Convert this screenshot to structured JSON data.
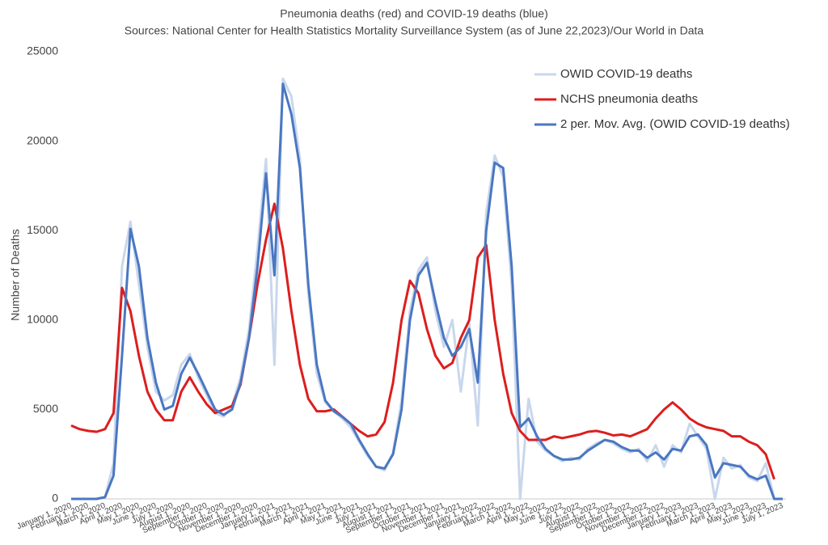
{
  "chart_data": {
    "type": "line",
    "title": "Pneumonia deaths (red) and COVID-19 deaths (blue)",
    "subtitle": "Sources: National Center for Health Statistics Mortality Surveillance System (as of June 22,2023)/Our World in Data",
    "y_label": "Number of Deaths",
    "ylim": [
      0,
      25000
    ],
    "yticks": [
      0,
      5000,
      10000,
      15000,
      20000,
      25000
    ],
    "grid": false,
    "legend": "top-right",
    "categories": [
      "January 1, 2020",
      null,
      "February 1, 2020",
      null,
      "March 1, 2020",
      null,
      "April 1, 2020",
      null,
      "May 1, 2020",
      null,
      "June 1, 2020",
      null,
      "July 1, 2020",
      null,
      "August 1, 2020",
      null,
      "September 1, 2020",
      null,
      "October 1, 2020",
      null,
      "November 1, 2020",
      null,
      "December 1, 2020",
      null,
      "January 1, 2021",
      null,
      "February 1, 2021",
      null,
      "March 1, 2021",
      null,
      "April 1, 2021",
      null,
      "May 1, 2021",
      null,
      "June 1, 2021",
      null,
      "July 1, 2021",
      null,
      "August 1, 2021",
      null,
      "September 1, 2021",
      null,
      "October 1, 2021",
      null,
      "November 1, 2021",
      null,
      "December 1, 2021",
      null,
      "January 1, 2022",
      null,
      "February 1, 2022",
      null,
      "March 1, 2022",
      null,
      "April 1, 2022",
      null,
      "May 1, 2022",
      null,
      "June 1, 2022",
      null,
      "July 1, 2022",
      null,
      "August 1, 2022",
      null,
      "September 1, 2022",
      null,
      "October 1, 2022",
      null,
      "November 1, 2022",
      null,
      "December 1, 2022",
      null,
      "January 1, 2023",
      null,
      "February 1, 2023",
      null,
      "March 1, 2023",
      null,
      "April 1, 2023",
      null,
      "May 1, 2023",
      null,
      "June 1, 2023",
      null,
      "July 1, 2023"
    ],
    "series": [
      {
        "name": "OWID COVID-19 deaths",
        "color": "#c9d7ec",
        "width": 3,
        "values": [
          0,
          0,
          0,
          0,
          100,
          2000,
          13000,
          15500,
          12000,
          8500,
          6000,
          5500,
          5800,
          7500,
          8100,
          6800,
          5800,
          4800,
          4600,
          5200,
          6800,
          9500,
          14000,
          19000,
          7500,
          23500,
          22500,
          19000,
          11500,
          7000,
          5400,
          4900,
          4500,
          4000,
          3200,
          2400,
          1800,
          1600,
          2600,
          5500,
          10500,
          12800,
          13500,
          10500,
          8500,
          10000,
          6000,
          9800,
          4100,
          16000,
          19200,
          18000,
          12000,
          0,
          5600,
          3200,
          2700,
          2400,
          2100,
          2300,
          2200,
          2800,
          3100,
          3300,
          3100,
          2800,
          2600,
          2800,
          2100,
          3000,
          1800,
          3000,
          2600,
          4200,
          3500,
          2800,
          0,
          2300,
          1700,
          1900,
          1200,
          1000,
          2000,
          0,
          0
        ]
      },
      {
        "name": "NCHS pneumonia deaths",
        "color": "#dc1e1e",
        "width": 3,
        "values": [
          4100,
          3900,
          3800,
          3750,
          3900,
          4800,
          11800,
          10500,
          8000,
          6000,
          5000,
          4400,
          4400,
          6000,
          6800,
          6000,
          5300,
          4800,
          5000,
          5200,
          6400,
          9000,
          12000,
          14500,
          16500,
          14000,
          10500,
          7500,
          5600,
          4900,
          4900,
          5000,
          4600,
          4200,
          3800,
          3500,
          3600,
          4300,
          6500,
          10000,
          12200,
          11500,
          9500,
          8000,
          7300,
          7600,
          9000,
          10000,
          13500,
          14200,
          10000,
          7000,
          4800,
          3800,
          3300,
          3300,
          3300,
          3500,
          3400,
          3500,
          3600,
          3750,
          3800,
          3700,
          3550,
          3600,
          3500,
          3700,
          3900,
          4500,
          5000,
          5400,
          5000,
          4500,
          4200,
          4000,
          3900,
          3800,
          3500,
          3500,
          3200,
          3000,
          2500,
          1100,
          null
        ]
      },
      {
        "name": "2 per. Mov. Avg. (OWID COVID-19 deaths)",
        "color": "#4a77c2",
        "width": 3,
        "values": [
          0,
          0,
          0,
          0,
          100,
          1300,
          8000,
          15100,
          13000,
          9000,
          6500,
          5000,
          5200,
          7000,
          7900,
          7000,
          6000,
          5000,
          4700,
          5000,
          6500,
          9000,
          13000,
          18200,
          12500,
          23200,
          21500,
          18500,
          12000,
          7500,
          5500,
          4900,
          4600,
          4200,
          3300,
          2500,
          1800,
          1700,
          2500,
          5000,
          10000,
          12500,
          13200,
          11000,
          9000,
          8000,
          8500,
          9500,
          6500,
          15000,
          18800,
          18500,
          13000,
          4000,
          4500,
          3500,
          2800,
          2400,
          2200,
          2200,
          2300,
          2700,
          3000,
          3300,
          3200,
          2900,
          2700,
          2700,
          2300,
          2600,
          2200,
          2800,
          2700,
          3500,
          3600,
          3000,
          1200,
          2000,
          1900,
          1800,
          1300,
          1100,
          1300,
          0,
          0
        ]
      }
    ]
  }
}
